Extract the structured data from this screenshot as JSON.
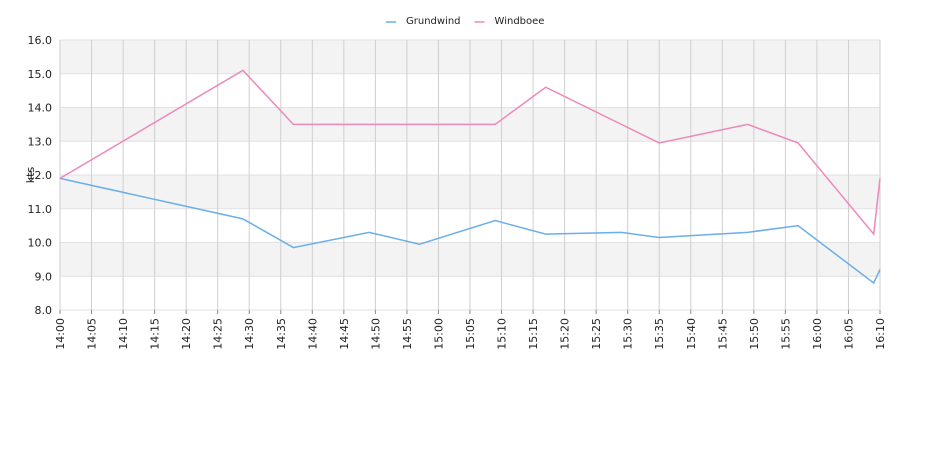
{
  "chart_data": {
    "type": "line",
    "y_label": "kts",
    "x": [
      "14:00",
      "14:29",
      "14:37",
      "14:49",
      "14:57",
      "15:09",
      "15:17",
      "15:29",
      "15:35",
      "15:49",
      "15:57",
      "16:09",
      "16:10"
    ],
    "series": [
      {
        "name": "Grundwind",
        "color": "#6aaeea",
        "values": [
          11.9,
          10.7,
          9.85,
          10.3,
          9.95,
          10.65,
          10.25,
          10.3,
          10.15,
          10.3,
          10.5,
          8.8,
          9.2
        ]
      },
      {
        "name": "Windboee",
        "color": "#ee88bb",
        "values": [
          11.9,
          15.1,
          13.5,
          13.5,
          13.5,
          13.5,
          14.6,
          13.5,
          12.95,
          13.5,
          12.95,
          10.25,
          11.9
        ]
      }
    ],
    "xlim": [
      "14:00",
      "16:10"
    ],
    "xticks": [
      "14:00",
      "14:05",
      "14:10",
      "14:15",
      "14:20",
      "14:25",
      "14:30",
      "14:35",
      "14:40",
      "14:45",
      "14:50",
      "14:55",
      "15:00",
      "15:05",
      "15:10",
      "15:15",
      "15:20",
      "15:25",
      "15:30",
      "15:35",
      "15:40",
      "15:45",
      "15:50",
      "15:55",
      "16:00",
      "16:05",
      "16:10"
    ],
    "ylim": [
      8,
      16
    ],
    "yticks": [
      {
        "value": 8,
        "label": "8.0"
      },
      {
        "value": 9,
        "label": "9.0"
      },
      {
        "value": 10,
        "label": "10.0"
      },
      {
        "value": 11,
        "label": "11.0"
      },
      {
        "value": 12,
        "label": "12.0"
      },
      {
        "value": 13,
        "label": "13.0"
      },
      {
        "value": 14,
        "label": "14.0"
      },
      {
        "value": 15,
        "label": "15.0"
      },
      {
        "value": 16,
        "label": "16.0"
      }
    ],
    "grid": true
  }
}
